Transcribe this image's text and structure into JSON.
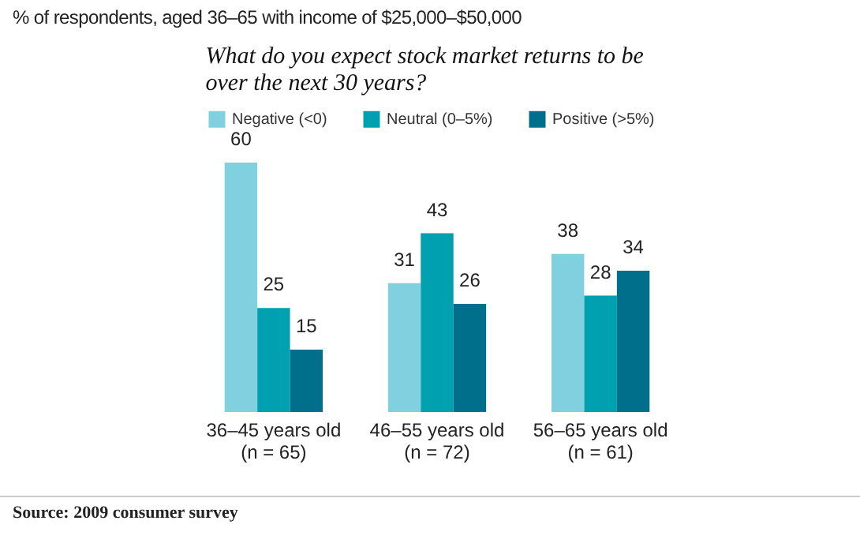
{
  "chart_data": {
    "type": "bar",
    "subtitle": "% of respondents, aged 36–65 with income of $25,000–$50,000",
    "title": "What do you expect stock market returns to be\nover the next 30 years?",
    "categories": [
      "36–45 years old\n(n = 65)",
      "46–55 years old\n(n = 72)",
      "56–65 years old\n(n = 61)"
    ],
    "series": [
      {
        "name": "Negative (<0)",
        "color": "#80d0e0",
        "values": [
          60,
          31,
          38
        ]
      },
      {
        "name": "Neutral (0–5%)",
        "color": "#00a0b0",
        "values": [
          25,
          43,
          28
        ]
      },
      {
        "name": "Positive (>5%)",
        "color": "#006f8c",
        "values": [
          15,
          26,
          34
        ]
      }
    ],
    "data_labels": true,
    "legend": "top",
    "grid": false,
    "annotations": [
      "Source: 2009 consumer survey"
    ]
  }
}
